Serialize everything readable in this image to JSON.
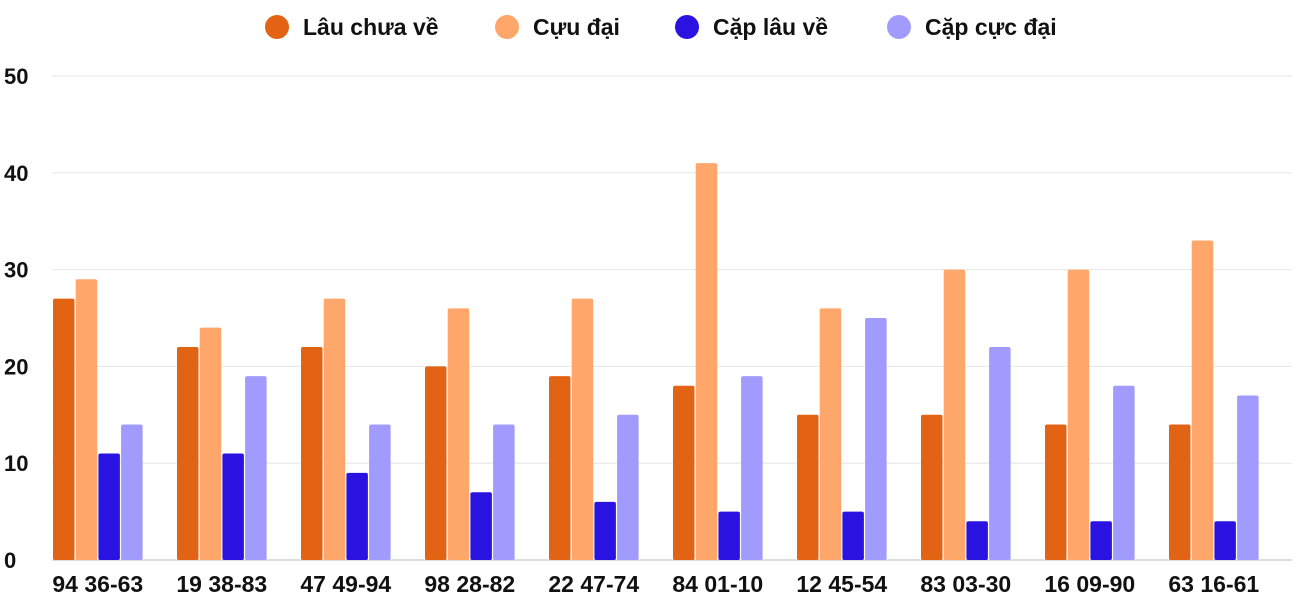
{
  "chart_data": {
    "type": "bar",
    "title": "",
    "xlabel": "",
    "ylabel": "",
    "ylim": [
      0,
      50
    ],
    "yticks": [
      0,
      10,
      20,
      30,
      40,
      50
    ],
    "grid": true,
    "legend_position": "top-center",
    "categories": [
      "94 36-63",
      "19 38-83",
      "47 49-94",
      "98 28-82",
      "22 47-74",
      "84 01-10",
      "12 45-54",
      "83 03-30",
      "16 09-90",
      "63 16-61"
    ],
    "series": [
      {
        "name": "Lâu chưa về",
        "color": "#E26314",
        "values": [
          27,
          22,
          22,
          20,
          19,
          18,
          15,
          15,
          14,
          14
        ]
      },
      {
        "name": "Cựu đại",
        "color": "#FFA66B",
        "values": [
          29,
          24,
          27,
          26,
          27,
          41,
          26,
          30,
          30,
          33
        ]
      },
      {
        "name": "Cặp lâu về",
        "color": "#2A13E0",
        "values": [
          11,
          11,
          9,
          7,
          6,
          5,
          5,
          4,
          4,
          4
        ]
      },
      {
        "name": "Cặp cực đại",
        "color": "#A29BFE",
        "values": [
          14,
          19,
          14,
          14,
          15,
          19,
          25,
          22,
          18,
          17
        ]
      }
    ]
  }
}
